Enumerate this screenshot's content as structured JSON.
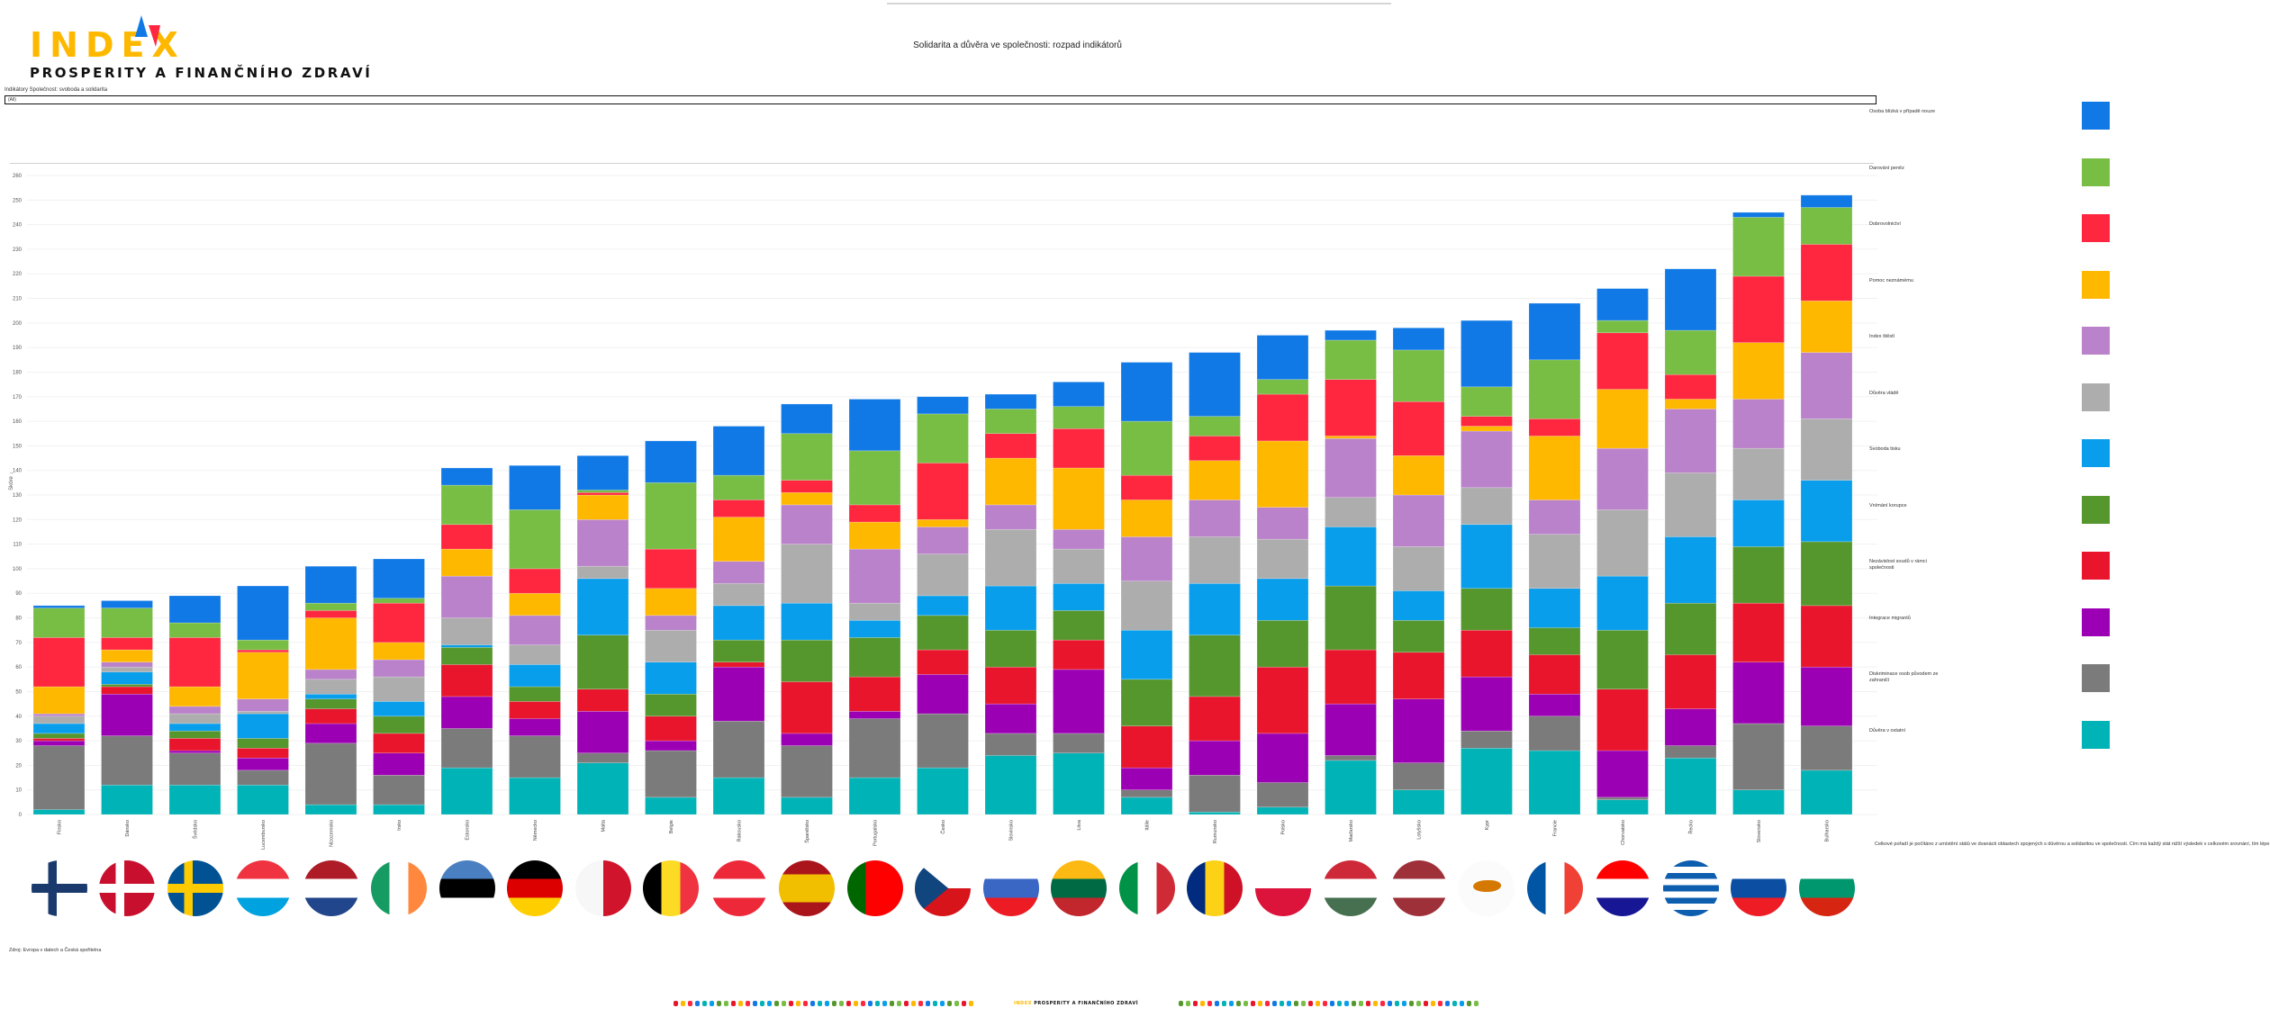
{
  "logo": {
    "word": "INDEX",
    "subtitle": "PROSPERITY A FINANČNÍHO ZDRAVÍ"
  },
  "title": "Solidarita a důvěra ve společnosti: rozpad indikátorů",
  "filter": {
    "label": "Indikátory Společnost: svoboda a solidarita",
    "value": "(All)"
  },
  "note": "Celkové pořadí je počítáno z umístění států ve dvanácti oblastech spojených s důvěrou a solidaritou ve společnosti. Čím má každý stát nižší výsledek v celkovém srovnání, tím lépe na tom v této oblasti je.",
  "source": "Zdroj: Evropa v datech a Česká spořitelna",
  "footer_strip": {
    "logo_word": "INDEX",
    "logo_sub": "PROSPERITY A FINANČNÍHO ZDRAVÍ"
  },
  "chart_data": {
    "type": "bar",
    "stacked": true,
    "title": "Solidarita a důvěra ve společnosti: rozpad indikátorů",
    "xlabel": "",
    "ylabel": "Skóre ↓",
    "ylim": [
      0,
      260
    ],
    "ytick_step": 10,
    "grid": true,
    "legend_position": "right",
    "categories": [
      "Finsko",
      "Dánsko",
      "Švédsko",
      "Lucembursko",
      "Nizozemsko",
      "Irsko",
      "Estonsko",
      "Německo",
      "Malta",
      "Belgie",
      "Rakousko",
      "Španělsko",
      "Portugalsko",
      "Česko",
      "Slovinsko",
      "Litva",
      "Itálie",
      "Rumunsko",
      "Polsko",
      "Maďarsko",
      "Lotyšsko",
      "Kypr",
      "Francie",
      "Chorvatsko",
      "Řecko",
      "Slovensko",
      "Bulharsko"
    ],
    "series": [
      {
        "name": "Důvěra v ostatní",
        "color": "#00B3B6",
        "values": [
          2,
          12,
          12,
          12,
          4,
          4,
          19,
          15,
          21,
          7,
          15,
          7,
          15,
          19,
          24,
          25,
          7,
          1,
          3,
          22,
          10,
          27,
          26,
          6,
          23,
          10,
          18
        ]
      },
      {
        "name": "Diskriminace osob původem ze zahraničí",
        "color": "#7B7B7B",
        "values": [
          26,
          20,
          13,
          6,
          25,
          12,
          16,
          17,
          4,
          19,
          23,
          21,
          24,
          22,
          9,
          8,
          3,
          15,
          10,
          2,
          11,
          7,
          14,
          1,
          5,
          27,
          18
        ]
      },
      {
        "name": "Integrace migrantů",
        "color": "#9B00B4",
        "values": [
          2,
          17,
          1,
          5,
          8,
          9,
          13,
          7,
          17,
          4,
          22,
          5,
          3,
          16,
          12,
          26,
          9,
          14,
          20,
          21,
          26,
          22,
          9,
          19,
          15,
          25,
          24
        ]
      },
      {
        "name": "Nezávislost soudů v rámci společnosti",
        "color": "#E8152C",
        "values": [
          1,
          3,
          5,
          4,
          6,
          8,
          13,
          7,
          9,
          10,
          2,
          21,
          14,
          10,
          15,
          12,
          17,
          18,
          27,
          22,
          19,
          19,
          16,
          25,
          22,
          24,
          25
        ]
      },
      {
        "name": "Vnímání korupce",
        "color": "#56972D",
        "values": [
          2,
          1,
          3,
          4,
          4,
          7,
          7,
          6,
          22,
          9,
          9,
          17,
          16,
          14,
          15,
          12,
          19,
          25,
          19,
          26,
          13,
          17,
          11,
          24,
          21,
          23,
          26
        ]
      },
      {
        "name": "Svoboda tisku",
        "color": "#089EEC",
        "values": [
          4,
          5,
          3,
          10,
          2,
          6,
          1,
          9,
          23,
          13,
          14,
          15,
          7,
          8,
          18,
          11,
          20,
          21,
          17,
          24,
          12,
          26,
          16,
          22,
          27,
          19,
          25
        ]
      },
      {
        "name": "Důvěra vládě",
        "color": "#ADADAD",
        "values": [
          3,
          2,
          4,
          1,
          6,
          10,
          11,
          8,
          5,
          13,
          9,
          24,
          7,
          17,
          23,
          14,
          20,
          19,
          16,
          12,
          18,
          15,
          22,
          27,
          26,
          21,
          25
        ]
      },
      {
        "name": "Index štěstí",
        "color": "#BA82CA",
        "values": [
          1,
          2,
          3,
          5,
          4,
          7,
          17,
          12,
          19,
          6,
          9,
          16,
          22,
          11,
          10,
          8,
          18,
          15,
          13,
          24,
          21,
          23,
          14,
          25,
          26,
          20,
          27
        ]
      },
      {
        "name": "Pomoc neznámému",
        "color": "#FFB800",
        "values": [
          11,
          5,
          8,
          19,
          21,
          7,
          11,
          9,
          10,
          11,
          18,
          5,
          11,
          3,
          19,
          25,
          15,
          16,
          27,
          1,
          16,
          2,
          26,
          24,
          4,
          23,
          21
        ]
      },
      {
        "name": "Dobrovolnictví",
        "color": "#FF263F",
        "values": [
          20,
          5,
          20,
          1,
          3,
          16,
          10,
          10,
          1,
          16,
          7,
          5,
          7,
          23,
          10,
          16,
          10,
          10,
          19,
          23,
          22,
          4,
          7,
          23,
          10,
          27,
          23
        ]
      },
      {
        "name": "Darování peněz",
        "color": "#78BE44",
        "values": [
          12,
          12,
          6,
          4,
          3,
          2,
          16,
          24,
          1,
          27,
          10,
          19,
          22,
          20,
          10,
          9,
          22,
          8,
          6,
          16,
          21,
          12,
          24,
          5,
          18,
          24,
          15
        ]
      },
      {
        "name": "Osoba blízká v případě nouze",
        "color": "#1179E6",
        "values": [
          1,
          3,
          11,
          22,
          15,
          16,
          7,
          18,
          14,
          17,
          20,
          12,
          21,
          7,
          6,
          10,
          24,
          26,
          18,
          4,
          9,
          27,
          23,
          13,
          25,
          2,
          5
        ]
      }
    ]
  },
  "flags": [
    {
      "type": "nordic",
      "colors": [
        "#ffffff",
        "#1a3a6e"
      ]
    },
    {
      "type": "nordic",
      "colors": [
        "#c8102e",
        "#ffffff"
      ]
    },
    {
      "type": "nordic",
      "colors": [
        "#005293",
        "#fecb00"
      ]
    },
    {
      "type": "h",
      "colors": [
        "#ef3340",
        "#ffffff",
        "#00a3e0"
      ]
    },
    {
      "type": "h",
      "colors": [
        "#ae1c28",
        "#ffffff",
        "#21468b"
      ]
    },
    {
      "type": "v",
      "colors": [
        "#169b62",
        "#ffffff",
        "#ff883e"
      ]
    },
    {
      "type": "h",
      "colors": [
        "#4a7fc1",
        "#000000",
        "#ffffff"
      ]
    },
    {
      "type": "h",
      "colors": [
        "#000000",
        "#dd0000",
        "#ffce00"
      ]
    },
    {
      "type": "v",
      "colors": [
        "#f7f7f7",
        "#cf142b"
      ]
    },
    {
      "type": "v",
      "colors": [
        "#000000",
        "#fdda24",
        "#ef3340"
      ]
    },
    {
      "type": "h",
      "colors": [
        "#ed2939",
        "#ffffff",
        "#ed2939"
      ]
    },
    {
      "type": "h",
      "colors": [
        "#aa151b",
        "#f1bf00",
        "#f1bf00",
        "#aa151b"
      ]
    },
    {
      "type": "v",
      "colors": [
        "#006600",
        "#ff0000",
        "#ff0000"
      ]
    },
    {
      "type": "cz",
      "colors": [
        "#ffffff",
        "#d7141a"
      ]
    },
    {
      "type": "h",
      "colors": [
        "#ffffff",
        "#3a66c4",
        "#ed1c24"
      ]
    },
    {
      "type": "h",
      "colors": [
        "#fdb913",
        "#006a44",
        "#c1272d"
      ]
    },
    {
      "type": "v",
      "colors": [
        "#009246",
        "#ffffff",
        "#ce2b37"
      ]
    },
    {
      "type": "v",
      "colors": [
        "#002b7f",
        "#fcd116",
        "#ce1126"
      ]
    },
    {
      "type": "h",
      "colors": [
        "#ffffff",
        "#dc143c"
      ]
    },
    {
      "type": "h",
      "colors": [
        "#ce2939",
        "#ffffff",
        "#477050"
      ]
    },
    {
      "type": "h",
      "colors": [
        "#9e3039",
        "#ffffff",
        "#9e3039"
      ]
    },
    {
      "type": "cy",
      "colors": [
        "#fbfbfb"
      ]
    },
    {
      "type": "v",
      "colors": [
        "#0055a4",
        "#ffffff",
        "#ef4135"
      ]
    },
    {
      "type": "h",
      "colors": [
        "#ff0000",
        "#ffffff",
        "#171796"
      ]
    },
    {
      "type": "h",
      "colors": [
        "#0d5eaf",
        "#ffffff",
        "#0d5eaf",
        "#ffffff",
        "#0d5eaf",
        "#ffffff",
        "#0d5eaf",
        "#ffffff",
        "#0d5eaf"
      ]
    },
    {
      "type": "h",
      "colors": [
        "#ffffff",
        "#0b4ea2",
        "#ee1c25"
      ]
    },
    {
      "type": "h",
      "colors": [
        "#ffffff",
        "#00966e",
        "#d62612"
      ]
    }
  ]
}
